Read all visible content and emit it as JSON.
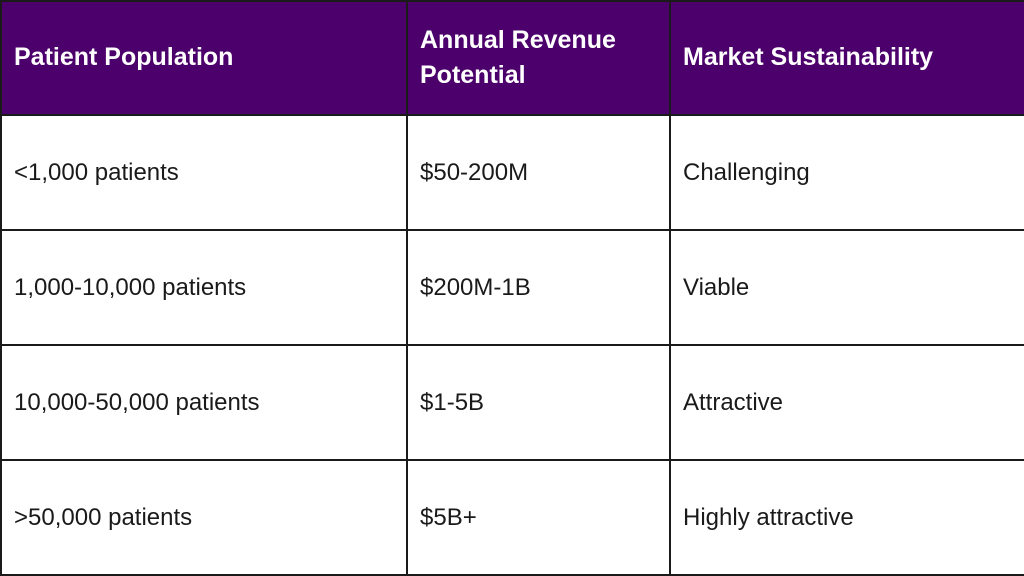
{
  "table": {
    "headers": [
      "Patient Population",
      "Annual Revenue Potential",
      "Market Sustainability"
    ],
    "rows": [
      [
        "<1,000 patients",
        "$50-200M",
        "Challenging"
      ],
      [
        "1,000-10,000 patients",
        "$200M-1B",
        "Viable"
      ],
      [
        "10,000-50,000 patients",
        "$1-5B",
        "Attractive"
      ],
      [
        ">50,000 patients",
        "$5B+",
        "Highly attractive"
      ]
    ]
  },
  "colors": {
    "header_bg": "#4b006b",
    "header_text": "#ffffff",
    "border": "#1a1a1a"
  }
}
